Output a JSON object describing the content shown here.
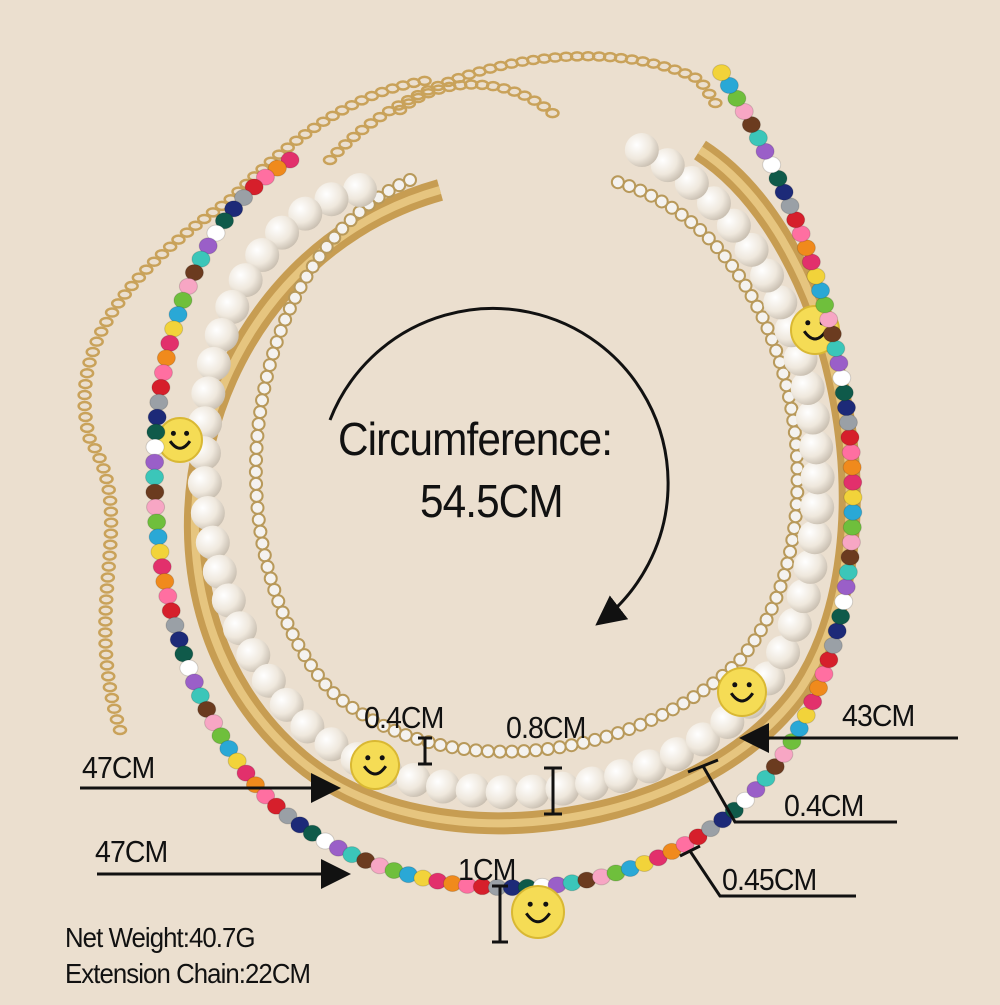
{
  "center_text": {
    "line1": "Circumference:",
    "line2": "54.5CM"
  },
  "measurements": {
    "pearl_label": "0.4CM",
    "rhinestone_label": "0.8CM",
    "length_43": "43CM",
    "length_47_snake": "47CM",
    "snake_width": "0.4CM",
    "length_47_beads": "47CM",
    "smiley_size": "1CM",
    "bead_size": "0.45CM"
  },
  "specs": {
    "net_weight": "Net Weight:40.7G",
    "extension_chain": "Extension Chain:22CM"
  },
  "colors": {
    "background": "#ebdfcf",
    "gold": "#c9a25a",
    "pearl": "#f6f1ea",
    "smiley": "#f5dc55",
    "text": "#111111"
  },
  "bead_colors": [
    "#e2306c",
    "#2aa8d6",
    "#f7a6c4",
    "#3bc6b9",
    "#ffffff",
    "#1d2a78",
    "#d61f2b",
    "#f08a1c",
    "#f2d33a",
    "#6fbf3c",
    "#6b3b1f",
    "#9a5fc8",
    "#0f5a4a",
    "#9aa0a6",
    "#ff6fa1"
  ]
}
